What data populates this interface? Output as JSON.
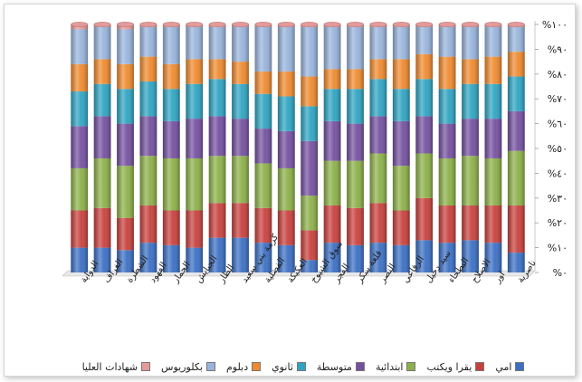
{
  "chart_data": {
    "type": "bar",
    "stacked": true,
    "percent": true,
    "ylim": [
      0,
      100
    ],
    "yticks": [
      "%٠",
      "%١٠",
      "%٢٠",
      "%٣٠",
      "%٤٠",
      "%٥٠",
      "%٦٠",
      "%٧٠",
      "%٨٠",
      "%٩٠",
      "%١٠٠"
    ],
    "categories": [
      "الدواية",
      "الغراف",
      "الشطرة",
      "الفهود",
      "الحمار",
      "الجبايش",
      "الطار",
      "كرمة بني سعيد",
      "الفضلية",
      "العكيكة",
      "سوق الشيوخ",
      "الفجر",
      "قلعة سكر",
      "النصر",
      "الرفاعي",
      "سيد دخيل",
      "البطحاء",
      "الاصلاح",
      "اور",
      "ناصرية"
    ],
    "series": [
      {
        "name": "امي",
        "color": "#3a6fc4",
        "values": [
          10,
          10,
          9,
          12,
          11,
          10,
          14,
          14,
          12,
          11,
          5,
          12,
          11,
          12,
          11,
          13,
          12,
          13,
          12,
          8
        ]
      },
      {
        "name": "يقرا ويكتب",
        "color": "#c8403c",
        "values": [
          15,
          16,
          13,
          15,
          14,
          15,
          14,
          14,
          14,
          14,
          12,
          15,
          15,
          16,
          14,
          17,
          15,
          14,
          15,
          19
        ]
      },
      {
        "name": "ابتدائية",
        "color": "#8cb048",
        "values": [
          17,
          20,
          21,
          20,
          21,
          21,
          19,
          19,
          18,
          17,
          14,
          18,
          19,
          20,
          18,
          18,
          19,
          20,
          19,
          22
        ]
      },
      {
        "name": "متوسطة",
        "color": "#7450a0",
        "values": [
          17,
          17,
          17,
          16,
          15,
          16,
          16,
          15,
          14,
          15,
          22,
          16,
          15,
          15,
          18,
          15,
          14,
          15,
          16,
          16
        ]
      },
      {
        "name": "ثانوي",
        "color": "#2ea4c2",
        "values": [
          14,
          13,
          14,
          14,
          13,
          14,
          15,
          14,
          14,
          14,
          14,
          13,
          14,
          15,
          13,
          15,
          14,
          14,
          14,
          14
        ]
      },
      {
        "name": "دبلوم",
        "color": "#ef8a2e",
        "values": [
          11,
          10,
          10,
          10,
          10,
          10,
          8,
          9,
          9,
          10,
          12,
          8,
          8,
          8,
          12,
          10,
          13,
          10,
          11,
          10
        ]
      },
      {
        "name": "بكلوريوس",
        "color": "#98b4dc",
        "values": [
          14,
          13,
          14,
          12,
          15,
          13,
          13,
          14,
          18,
          18,
          20,
          17,
          17,
          13,
          13,
          11,
          12,
          13,
          12,
          10
        ]
      },
      {
        "name": "شهادات العليا",
        "color": "#e49a9a",
        "values": [
          2,
          1,
          2,
          1,
          1,
          1,
          1,
          1,
          1,
          1,
          1,
          1,
          1,
          1,
          1,
          1,
          1,
          1,
          1,
          1
        ]
      }
    ],
    "legend_position": "bottom",
    "grid": false
  }
}
